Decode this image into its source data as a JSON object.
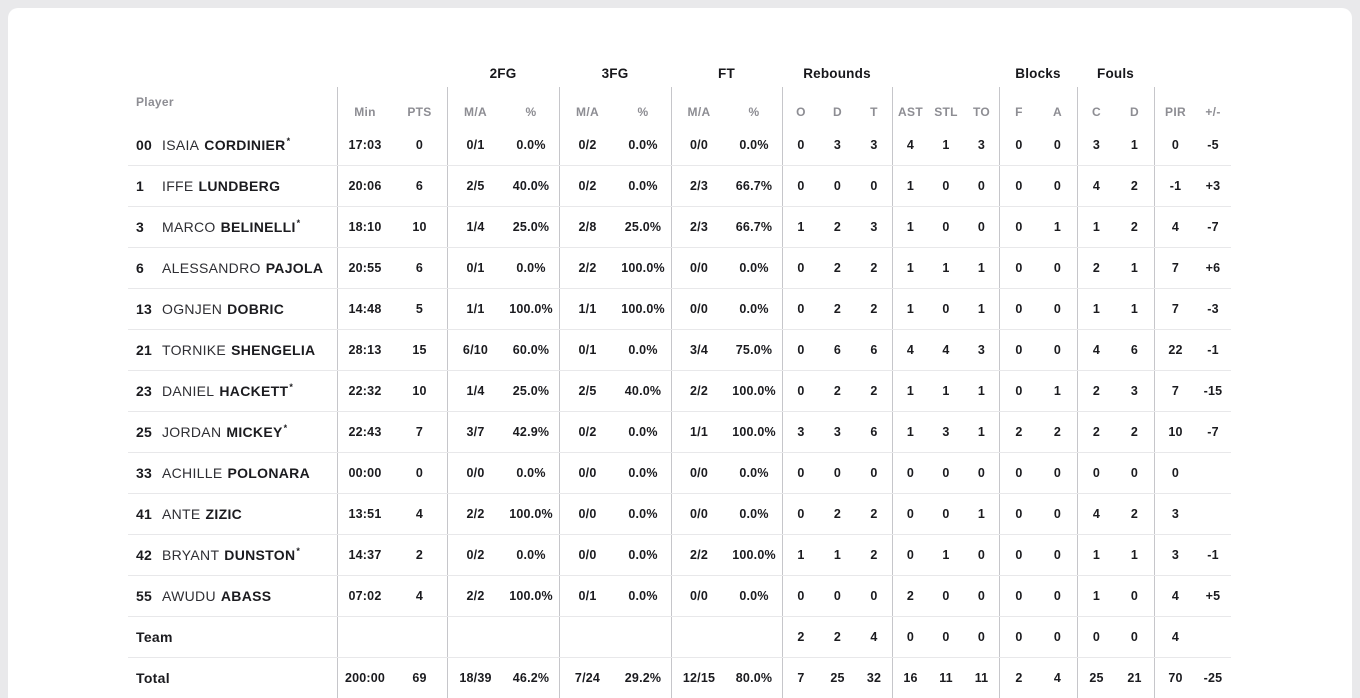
{
  "colors": {
    "page_bg": "#e9e9eb",
    "card_bg": "#ffffff",
    "text": "#17171b",
    "muted_header": "#8d8d93",
    "row_line": "#e8e8ea",
    "column_line": "#c6c6ca"
  },
  "table": {
    "group_labels": {
      "fg2": "2FG",
      "fg3": "3FG",
      "ft": "FT",
      "rebounds": "Rebounds",
      "blocks": "Blocks",
      "fouls": "Fouls"
    },
    "subheaders": {
      "player": "Player",
      "min": "Min",
      "pts": "PTS",
      "ma": "M/A",
      "pct": "%",
      "o": "O",
      "d": "D",
      "t": "T",
      "ast": "AST",
      "stl": "STL",
      "to": "TO",
      "f": "F",
      "a": "A",
      "c": "C",
      "pir": "PIR",
      "pm": "+/-"
    },
    "rows": [
      {
        "num": "00",
        "first": "ISAIA",
        "last": "CORDINIER",
        "mark": "*",
        "min": "17:03",
        "pts": "0",
        "f2ma": "0/1",
        "f2p": "0.0%",
        "f3ma": "0/2",
        "f3p": "0.0%",
        "ftma": "0/0",
        "ftp": "0.0%",
        "o": "0",
        "d": "3",
        "t": "3",
        "ast": "4",
        "stl": "1",
        "to": "3",
        "bf": "0",
        "ba": "0",
        "fc": "3",
        "fd": "1",
        "pir": "0",
        "pm": "-5"
      },
      {
        "num": "1",
        "first": "IFFE",
        "last": "LUNDBERG",
        "mark": "",
        "min": "20:06",
        "pts": "6",
        "f2ma": "2/5",
        "f2p": "40.0%",
        "f3ma": "0/2",
        "f3p": "0.0%",
        "ftma": "2/3",
        "ftp": "66.7%",
        "o": "0",
        "d": "0",
        "t": "0",
        "ast": "1",
        "stl": "0",
        "to": "0",
        "bf": "0",
        "ba": "0",
        "fc": "4",
        "fd": "2",
        "pir": "-1",
        "pm": "+3"
      },
      {
        "num": "3",
        "first": "MARCO",
        "last": "BELINELLI",
        "mark": "*",
        "min": "18:10",
        "pts": "10",
        "f2ma": "1/4",
        "f2p": "25.0%",
        "f3ma": "2/8",
        "f3p": "25.0%",
        "ftma": "2/3",
        "ftp": "66.7%",
        "o": "1",
        "d": "2",
        "t": "3",
        "ast": "1",
        "stl": "0",
        "to": "0",
        "bf": "0",
        "ba": "1",
        "fc": "1",
        "fd": "2",
        "pir": "4",
        "pm": "-7"
      },
      {
        "num": "6",
        "first": "ALESSANDRO",
        "last": "PAJOLA",
        "mark": "",
        "min": "20:55",
        "pts": "6",
        "f2ma": "0/1",
        "f2p": "0.0%",
        "f3ma": "2/2",
        "f3p": "100.0%",
        "ftma": "0/0",
        "ftp": "0.0%",
        "o": "0",
        "d": "2",
        "t": "2",
        "ast": "1",
        "stl": "1",
        "to": "1",
        "bf": "0",
        "ba": "0",
        "fc": "2",
        "fd": "1",
        "pir": "7",
        "pm": "+6"
      },
      {
        "num": "13",
        "first": "OGNJEN",
        "last": "DOBRIC",
        "mark": "",
        "min": "14:48",
        "pts": "5",
        "f2ma": "1/1",
        "f2p": "100.0%",
        "f3ma": "1/1",
        "f3p": "100.0%",
        "ftma": "0/0",
        "ftp": "0.0%",
        "o": "0",
        "d": "2",
        "t": "2",
        "ast": "1",
        "stl": "0",
        "to": "1",
        "bf": "0",
        "ba": "0",
        "fc": "1",
        "fd": "1",
        "pir": "7",
        "pm": "-3"
      },
      {
        "num": "21",
        "first": "TORNIKE",
        "last": "SHENGELIA",
        "mark": "",
        "min": "28:13",
        "pts": "15",
        "f2ma": "6/10",
        "f2p": "60.0%",
        "f3ma": "0/1",
        "f3p": "0.0%",
        "ftma": "3/4",
        "ftp": "75.0%",
        "o": "0",
        "d": "6",
        "t": "6",
        "ast": "4",
        "stl": "4",
        "to": "3",
        "bf": "0",
        "ba": "0",
        "fc": "4",
        "fd": "6",
        "pir": "22",
        "pm": "-1"
      },
      {
        "num": "23",
        "first": "DANIEL",
        "last": "HACKETT",
        "mark": "*",
        "min": "22:32",
        "pts": "10",
        "f2ma": "1/4",
        "f2p": "25.0%",
        "f3ma": "2/5",
        "f3p": "40.0%",
        "ftma": "2/2",
        "ftp": "100.0%",
        "o": "0",
        "d": "2",
        "t": "2",
        "ast": "1",
        "stl": "1",
        "to": "1",
        "bf": "0",
        "ba": "1",
        "fc": "2",
        "fd": "3",
        "pir": "7",
        "pm": "-15"
      },
      {
        "num": "25",
        "first": "JORDAN",
        "last": "MICKEY",
        "mark": "*",
        "min": "22:43",
        "pts": "7",
        "f2ma": "3/7",
        "f2p": "42.9%",
        "f3ma": "0/2",
        "f3p": "0.0%",
        "ftma": "1/1",
        "ftp": "100.0%",
        "o": "3",
        "d": "3",
        "t": "6",
        "ast": "1",
        "stl": "3",
        "to": "1",
        "bf": "2",
        "ba": "2",
        "fc": "2",
        "fd": "2",
        "pir": "10",
        "pm": "-7"
      },
      {
        "num": "33",
        "first": "ACHILLE",
        "last": "POLONARA",
        "mark": "",
        "min": "00:00",
        "pts": "0",
        "f2ma": "0/0",
        "f2p": "0.0%",
        "f3ma": "0/0",
        "f3p": "0.0%",
        "ftma": "0/0",
        "ftp": "0.0%",
        "o": "0",
        "d": "0",
        "t": "0",
        "ast": "0",
        "stl": "0",
        "to": "0",
        "bf": "0",
        "ba": "0",
        "fc": "0",
        "fd": "0",
        "pir": "0",
        "pm": ""
      },
      {
        "num": "41",
        "first": "ANTE",
        "last": "ZIZIC",
        "mark": "",
        "min": "13:51",
        "pts": "4",
        "f2ma": "2/2",
        "f2p": "100.0%",
        "f3ma": "0/0",
        "f3p": "0.0%",
        "ftma": "0/0",
        "ftp": "0.0%",
        "o": "0",
        "d": "2",
        "t": "2",
        "ast": "0",
        "stl": "0",
        "to": "1",
        "bf": "0",
        "ba": "0",
        "fc": "4",
        "fd": "2",
        "pir": "3",
        "pm": ""
      },
      {
        "num": "42",
        "first": "BRYANT",
        "last": "DUNSTON",
        "mark": "*",
        "min": "14:37",
        "pts": "2",
        "f2ma": "0/2",
        "f2p": "0.0%",
        "f3ma": "0/0",
        "f3p": "0.0%",
        "ftma": "2/2",
        "ftp": "100.0%",
        "o": "1",
        "d": "1",
        "t": "2",
        "ast": "0",
        "stl": "1",
        "to": "0",
        "bf": "0",
        "ba": "0",
        "fc": "1",
        "fd": "1",
        "pir": "3",
        "pm": "-1"
      },
      {
        "num": "55",
        "first": "AWUDU",
        "last": "ABASS",
        "mark": "",
        "min": "07:02",
        "pts": "4",
        "f2ma": "2/2",
        "f2p": "100.0%",
        "f3ma": "0/1",
        "f3p": "0.0%",
        "ftma": "0/0",
        "ftp": "0.0%",
        "o": "0",
        "d": "0",
        "t": "0",
        "ast": "2",
        "stl": "0",
        "to": "0",
        "bf": "0",
        "ba": "0",
        "fc": "1",
        "fd": "0",
        "pir": "4",
        "pm": "+5"
      },
      {
        "num": "",
        "first": "",
        "last": "Team",
        "mark": "",
        "min": "",
        "pts": "",
        "f2ma": "",
        "f2p": "",
        "f3ma": "",
        "f3p": "",
        "ftma": "",
        "ftp": "",
        "o": "2",
        "d": "2",
        "t": "4",
        "ast": "0",
        "stl": "0",
        "to": "0",
        "bf": "0",
        "ba": "0",
        "fc": "0",
        "fd": "0",
        "pir": "4",
        "pm": ""
      },
      {
        "num": "",
        "first": "",
        "last": "Total",
        "mark": "",
        "min": "200:00",
        "pts": "69",
        "f2ma": "18/39",
        "f2p": "46.2%",
        "f3ma": "7/24",
        "f3p": "29.2%",
        "ftma": "12/15",
        "ftp": "80.0%",
        "o": "7",
        "d": "25",
        "t": "32",
        "ast": "16",
        "stl": "11",
        "to": "11",
        "bf": "2",
        "ba": "4",
        "fc": "25",
        "fd": "21",
        "pir": "70",
        "pm": "-25"
      }
    ]
  }
}
